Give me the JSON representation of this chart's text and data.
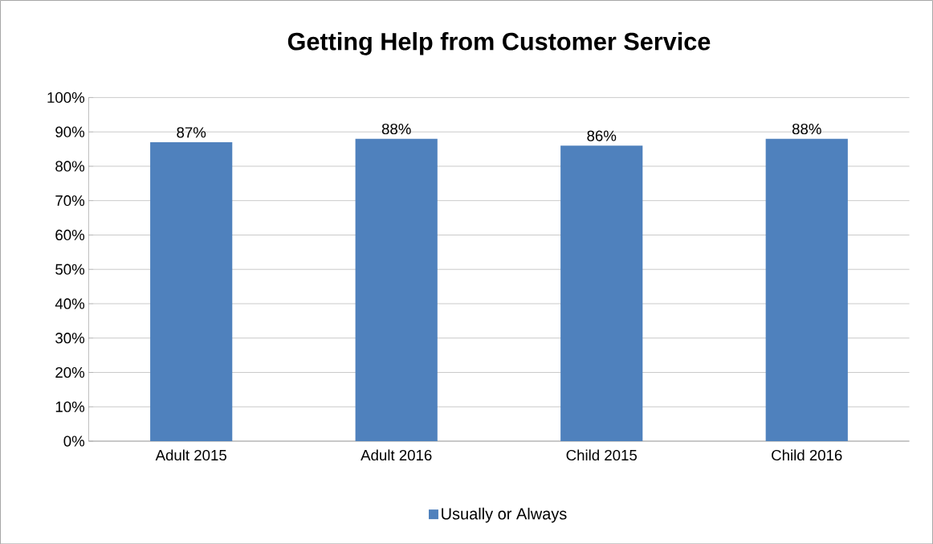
{
  "chart_data": {
    "type": "bar",
    "title": "Getting Help from Customer Service",
    "categories": [
      "Adult 2015",
      "Adult 2016",
      "Child 2015",
      "Child 2016"
    ],
    "series": [
      {
        "name": "Usually or Always",
        "color": "#4f81bd",
        "values": [
          87,
          88,
          86,
          88
        ],
        "value_labels": [
          "87%",
          "88%",
          "86%",
          "88%"
        ]
      }
    ],
    "ylim": [
      0,
      100
    ],
    "yticks": [
      {
        "value": 0,
        "label": "0%"
      },
      {
        "value": 10,
        "label": "10%"
      },
      {
        "value": 20,
        "label": "20%"
      },
      {
        "value": 30,
        "label": "30%"
      },
      {
        "value": 40,
        "label": "40%"
      },
      {
        "value": 50,
        "label": "50%"
      },
      {
        "value": 60,
        "label": "60%"
      },
      {
        "value": 70,
        "label": "70%"
      },
      {
        "value": 80,
        "label": "80%"
      },
      {
        "value": 90,
        "label": "90%"
      },
      {
        "value": 100,
        "label": "100%"
      }
    ],
    "grid": "y",
    "legend": "bottom"
  }
}
